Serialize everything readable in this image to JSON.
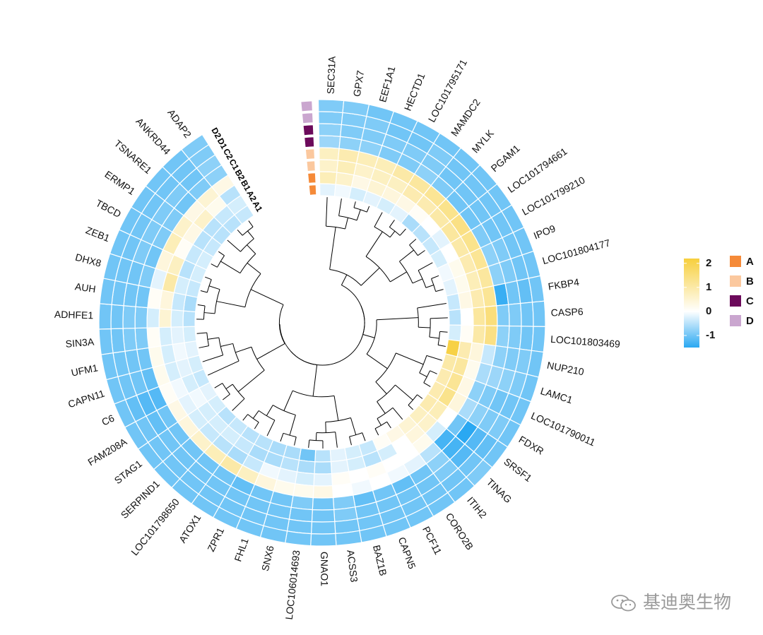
{
  "chart_data": {
    "type": "heatmap",
    "layout": "circular",
    "title": "",
    "rows": [
      "A1",
      "A2",
      "B1",
      "B2",
      "C1",
      "C2",
      "D1",
      "D2"
    ],
    "row_groups": [
      "A",
      "A",
      "B",
      "B",
      "C",
      "C",
      "D",
      "D"
    ],
    "genes": [
      "SEC31A",
      "GPX7",
      "EEF1A1",
      "HECTD1",
      "LOC101795171",
      "MAMDC2",
      "MYLK",
      "PGAM1",
      "LOC101794661",
      "LOC101799210",
      "IPO9",
      "LOC101804177",
      "FKBP4",
      "CASP6",
      "LOC101803469",
      "NUP210",
      "LAMC1",
      "LOC101790011",
      "FDXR",
      "SRSF1",
      "TINAG",
      "ITIH2",
      "CORO2B",
      "PCF11",
      "CAPN5",
      "BAZ1B",
      "ACSS3",
      "GNAO1",
      "LOC106014693",
      "SNX6",
      "FHL1",
      "ZPR1",
      "ATOX1",
      "LOC101798650",
      "SERPIND1",
      "STAG1",
      "FAM208A",
      "C6",
      "CAPN11",
      "UFM1",
      "SIN3A",
      "ADHFE1",
      "AUH",
      "DHX8",
      "ZEB1",
      "TBCD",
      "ERMP1",
      "TSNARE1",
      "ANKRD44",
      "ADAP2"
    ],
    "values": [
      [
        -0.2,
        -0.1,
        -0.3,
        -0.2,
        -0.3,
        -0.2,
        -0.6,
        -0.5,
        -0.4,
        -0.3,
        -0.1,
        -0.2,
        -0.4,
        -0.5,
        -0.3,
        2.1,
        1.0,
        0.9,
        0.9,
        0.9,
        0.7,
        0.5,
        0.3,
        0.1,
        -0.4,
        -0.3,
        -0.2,
        -0.5,
        -1.0,
        -0.6,
        -0.6,
        -0.5,
        -0.5,
        -0.4,
        -0.5,
        -0.3,
        -0.2,
        -0.4,
        -0.3,
        -0.2,
        -0.3,
        -0.5,
        -0.6,
        -0.4,
        -0.3,
        -0.3,
        -0.4,
        -0.5,
        -0.5,
        -0.4
      ],
      [
        0.8,
        0.6,
        0.3,
        0.5,
        0.4,
        0.3,
        0.1,
        0.0,
        -0.2,
        0.0,
        0.2,
        0.2,
        0.3,
        0.0,
        0.1,
        0.9,
        1.1,
        1.2,
        1.3,
        0.8,
        0.6,
        0.4,
        0.0,
        -0.3,
        -0.5,
        -0.3,
        -0.2,
        -0.6,
        -0.6,
        -0.5,
        -0.6,
        -0.6,
        -0.4,
        -0.3,
        -0.3,
        -0.3,
        -0.1,
        -0.3,
        -0.2,
        -0.1,
        -0.2,
        -0.3,
        -0.4,
        -0.3,
        -0.5,
        -0.4,
        -0.5,
        -0.5,
        -0.4,
        -0.3
      ],
      [
        0.6,
        0.8,
        0.6,
        0.7,
        0.7,
        0.9,
        0.9,
        1.0,
        1.1,
        1.0,
        0.9,
        0.8,
        0.9,
        1.1,
        1.0,
        0.4,
        0.2,
        0.3,
        0.4,
        0.0,
        -0.3,
        0.2,
        0.0,
        0.0,
        0.1,
        0.0,
        0.1,
        -0.2,
        -0.3,
        -0.2,
        -0.1,
        -0.4,
        -0.6,
        -0.5,
        -0.4,
        -0.3,
        -0.2,
        -0.1,
        -0.3,
        -0.3,
        -0.3,
        0.5,
        0.4,
        1.0,
        0.7,
        0.1,
        0.3,
        0.6,
        0.2,
        -0.5
      ],
      [
        0.7,
        0.9,
        0.8,
        0.8,
        1.0,
        1.1,
        1.2,
        1.3,
        1.4,
        1.3,
        1.2,
        1.1,
        1.2,
        1.5,
        1.4,
        -0.4,
        -0.6,
        -0.8,
        -0.6,
        -1.0,
        -1.3,
        -0.5,
        -0.2,
        -0.1,
        0.0,
        -0.1,
        0.0,
        0.3,
        0.2,
        0.2,
        0.4,
        0.7,
        1.0,
        0.8,
        0.6,
        0.4,
        0.3,
        0.1,
        0.2,
        0.2,
        0.1,
        -0.3,
        0.1,
        -0.2,
        0.4,
        0.8,
        0.6,
        0.3,
        0.5,
        0.3
      ],
      [
        -0.7,
        -0.8,
        -0.8,
        -0.9,
        -0.9,
        -0.8,
        -0.9,
        -1.0,
        -1.0,
        -0.9,
        -0.8,
        -0.8,
        -1.4,
        -0.9,
        -0.8,
        -0.8,
        -0.7,
        -0.9,
        -0.8,
        -1.5,
        -1.3,
        -0.8,
        -1.0,
        -1.1,
        -1.0,
        -1.1,
        -0.9,
        -1.0,
        -0.9,
        -1.0,
        -1.0,
        -1.1,
        -1.0,
        -1.0,
        -1.0,
        -1.0,
        -1.0,
        -1.2,
        -1.1,
        -1.0,
        -0.9,
        -0.9,
        -1.0,
        -0.9,
        -1.0,
        -0.9,
        -0.9,
        -1.0,
        -0.9,
        -0.8
      ],
      [
        -0.8,
        -0.9,
        -0.9,
        -0.9,
        -0.9,
        -0.9,
        -1.0,
        -1.0,
        -1.0,
        -1.0,
        -0.9,
        -0.9,
        -1.0,
        -0.9,
        -0.9,
        -0.9,
        -0.8,
        -1.0,
        -0.9,
        -1.2,
        -1.2,
        -0.9,
        -1.0,
        -1.0,
        -1.0,
        -1.0,
        -0.9,
        -1.0,
        -1.0,
        -1.0,
        -1.0,
        -1.0,
        -1.0,
        -1.0,
        -1.0,
        -1.0,
        -1.1,
        -1.2,
        -1.0,
        -1.0,
        -0.9,
        -0.9,
        -1.0,
        -1.0,
        -0.9,
        -0.9,
        -0.9,
        -0.9,
        -1.0,
        -0.8
      ],
      [
        -0.9,
        -0.9,
        -0.9,
        -1.0,
        -1.0,
        -0.9,
        -1.0,
        -1.0,
        -1.0,
        -1.0,
        -1.0,
        -1.0,
        -1.1,
        -1.0,
        -1.0,
        -0.9,
        -0.9,
        -1.0,
        -0.9,
        -1.1,
        -1.0,
        -1.0,
        -1.0,
        -1.0,
        -1.0,
        -1.0,
        -1.0,
        -1.0,
        -1.0,
        -1.0,
        -1.0,
        -1.0,
        -1.0,
        -1.0,
        -1.0,
        -1.0,
        -1.0,
        -1.1,
        -1.0,
        -1.0,
        -1.0,
        -1.0,
        -1.0,
        -1.0,
        -1.0,
        -1.0,
        -1.0,
        -1.0,
        -1.0,
        -0.9
      ],
      [
        -0.9,
        -0.9,
        -1.0,
        -1.0,
        -1.0,
        -1.0,
        -1.0,
        -1.0,
        -1.0,
        -1.0,
        -1.0,
        -1.0,
        -1.0,
        -1.0,
        -1.0,
        -1.0,
        -1.0,
        -1.0,
        -1.0,
        -1.0,
        -0.9,
        -1.0,
        -1.0,
        -1.0,
        -1.0,
        -1.0,
        -1.0,
        -1.0,
        -1.0,
        -1.0,
        -1.0,
        -1.0,
        -1.0,
        -1.0,
        -1.0,
        -1.0,
        -1.0,
        -1.0,
        -1.0,
        -1.0,
        -1.0,
        -1.0,
        -1.0,
        -1.0,
        -1.0,
        -1.0,
        -1.0,
        -1.0,
        -1.0,
        -0.9
      ]
    ],
    "color_scale": {
      "stops": [
        -1.5,
        0,
        2.2
      ],
      "colors": [
        "#2aa8f2",
        "#ffffff",
        "#f7cf3d"
      ],
      "ticks": [
        "2",
        "1",
        "0",
        "-1"
      ]
    },
    "groups": [
      {
        "name": "A",
        "color": "#f58a38"
      },
      {
        "name": "B",
        "color": "#fbc89e"
      },
      {
        "name": "C",
        "color": "#6c0a5b"
      },
      {
        "name": "D",
        "color": "#caa6cf"
      }
    ],
    "dendrogram": true
  },
  "watermark": "基迪奥生物"
}
